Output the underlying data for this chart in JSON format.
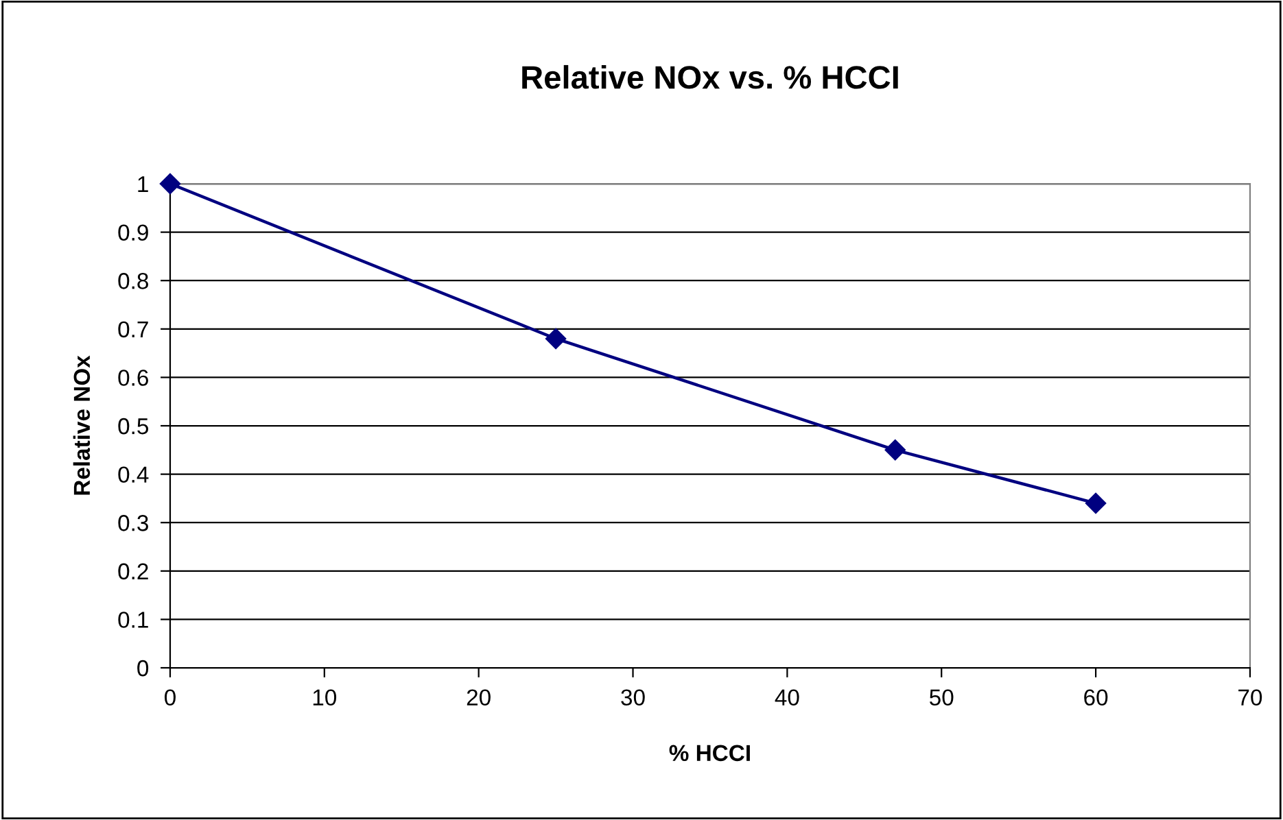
{
  "chart_data": {
    "type": "line",
    "title": "Relative NOx vs. % HCCI",
    "xlabel": "% HCCI",
    "ylabel": "Relative NOx",
    "x": [
      0,
      25,
      47,
      60
    ],
    "series": [
      {
        "color": "#000080",
        "values": [
          1.0,
          0.68,
          0.45,
          0.34
        ]
      }
    ],
    "xlim": [
      0,
      70
    ],
    "xticks": [
      0,
      10,
      20,
      30,
      40,
      50,
      60,
      70
    ],
    "ylim": [
      0,
      1
    ],
    "yticks": [
      0,
      0.1,
      0.2,
      0.3,
      0.4,
      0.5,
      0.6,
      0.7,
      0.8,
      0.9,
      1
    ],
    "grid": "y",
    "marker": "diamond",
    "line_style": "solid",
    "legend": false
  }
}
